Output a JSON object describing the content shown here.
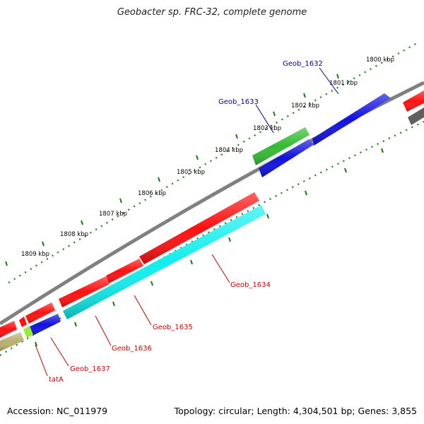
{
  "title": "Geobacter sp. FRC-32, complete genome",
  "accession": "Accession: NC_011979",
  "summary": "Topology: circular; Length: 4,304,501 bp; Genes: 3,855",
  "kbp_labels": [
    "1800 kbp",
    "1801 kbp",
    "1802 kbp",
    "1803 kbp",
    "1804 kbp",
    "1805 kbp",
    "1806 kbp",
    "1807 kbp",
    "1808 kbp",
    "1809 kbp"
  ],
  "gene_labels": {
    "geob_1632": "Geob_1632",
    "geob_1633": "Geob_1633",
    "geob_1634": "Geob_1634",
    "geob_1635": "Geob_1635",
    "geob_1636": "Geob_1636",
    "geob_1637": "Geob_1637",
    "tatA": "tatA"
  },
  "colors": {
    "forward_label": "#0000aa",
    "reverse_label": "#cc0000",
    "backbone": "#808080",
    "ticks": "#1a7a1a",
    "red": "#ff1010",
    "blue": "#1010e0",
    "green": "#33bb33",
    "cyan": "#11eeee",
    "lime": "#99ee33",
    "khaki": "#b8b070",
    "dark": "#606060"
  }
}
